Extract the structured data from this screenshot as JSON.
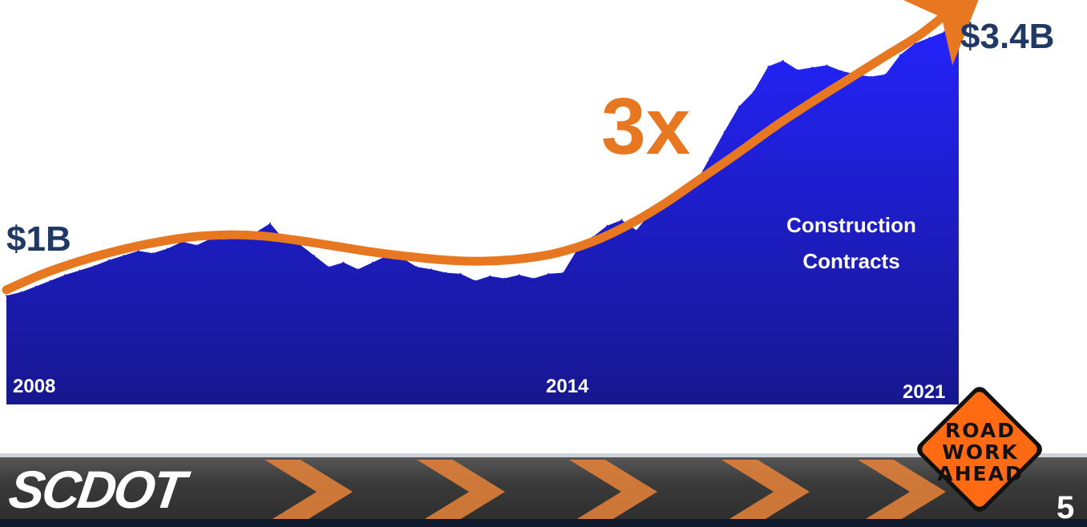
{
  "chart_data": {
    "type": "area",
    "x_start_label": "2008",
    "x_mid_label": "2014",
    "x_end_label": "2021",
    "x_tick_labels": [
      "2008",
      "2014",
      "2021"
    ],
    "x_range": [
      2008,
      2021
    ],
    "y_range": [
      0,
      3.6
    ],
    "series": [
      {
        "name": "Construction Contracts",
        "x": [
          2008.0,
          2008.2,
          2008.4,
          2008.6,
          2008.8,
          2009.0,
          2009.2,
          2009.4,
          2009.6,
          2009.8,
          2010.0,
          2010.2,
          2010.4,
          2010.6,
          2010.8,
          2011.0,
          2011.2,
          2011.4,
          2011.6,
          2011.8,
          2012.0,
          2012.2,
          2012.4,
          2012.6,
          2012.8,
          2013.0,
          2013.2,
          2013.4,
          2013.6,
          2013.8,
          2014.0,
          2014.2,
          2014.4,
          2014.6,
          2014.8,
          2015.0,
          2015.2,
          2015.4,
          2015.6,
          2015.8,
          2016.0,
          2016.2,
          2016.4,
          2016.6,
          2016.8,
          2017.0,
          2017.2,
          2017.4,
          2017.6,
          2017.8,
          2018.0,
          2018.2,
          2018.4,
          2018.6,
          2018.8,
          2019.0,
          2019.2,
          2019.4,
          2019.6,
          2019.8,
          2020.0,
          2020.2,
          2020.4,
          2020.6,
          2020.8,
          2021.0
        ],
        "values": [
          0.95,
          0.98,
          1.03,
          1.08,
          1.13,
          1.17,
          1.21,
          1.26,
          1.3,
          1.34,
          1.32,
          1.36,
          1.42,
          1.39,
          1.45,
          1.44,
          1.48,
          1.5,
          1.58,
          1.43,
          1.4,
          1.3,
          1.2,
          1.24,
          1.18,
          1.24,
          1.3,
          1.28,
          1.2,
          1.18,
          1.15,
          1.14,
          1.08,
          1.12,
          1.1,
          1.13,
          1.1,
          1.14,
          1.15,
          1.36,
          1.46,
          1.56,
          1.61,
          1.52,
          1.68,
          1.77,
          1.85,
          1.92,
          2.15,
          2.38,
          2.6,
          2.73,
          2.95,
          3.0,
          2.92,
          2.94,
          2.96,
          2.91,
          2.88,
          2.86,
          2.88,
          3.05,
          3.15,
          3.2,
          3.25,
          3.4
        ]
      }
    ],
    "trend": {
      "x": [
        2008.0,
        2008.5,
        2009.0,
        2009.5,
        2010.0,
        2010.5,
        2011.0,
        2011.5,
        2012.0,
        2012.5,
        2013.0,
        2013.5,
        2014.0,
        2014.5,
        2015.0,
        2015.5,
        2016.0,
        2016.5,
        2017.0,
        2017.5,
        2018.0,
        2018.5,
        2019.0,
        2019.5,
        2020.0,
        2020.5,
        2021.0
      ],
      "values": [
        1.0,
        1.14,
        1.25,
        1.34,
        1.41,
        1.46,
        1.48,
        1.47,
        1.43,
        1.38,
        1.33,
        1.29,
        1.26,
        1.25,
        1.27,
        1.32,
        1.42,
        1.57,
        1.76,
        1.98,
        2.2,
        2.43,
        2.64,
        2.84,
        3.04,
        3.24,
        3.5
      ]
    },
    "start_label": "$1B",
    "end_label": "$3.4B",
    "multiplier_label": "3x",
    "series_label_line1": "Construction",
    "series_label_line2": "Contracts",
    "grid": false
  },
  "footer": {
    "logo_text": "SCDOT",
    "sign_lines": [
      "ROAD",
      "WORK",
      "AHEAD"
    ],
    "page_number": "5"
  },
  "colors": {
    "area_top": "#2222ff",
    "area_bottom": "#14148c",
    "trend": "#e87722",
    "label_navy": "#1f3864",
    "sign_orange": "#ff6a13"
  }
}
